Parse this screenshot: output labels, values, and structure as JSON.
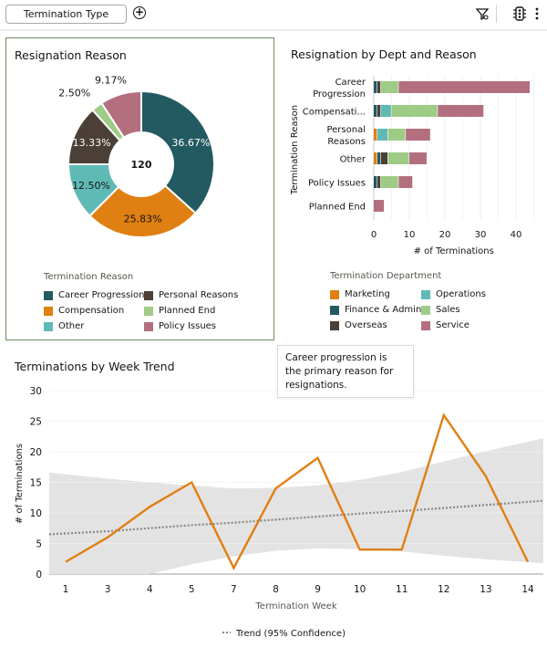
{
  "toolbar": {
    "filter_label": "Termination Type",
    "add_filter_icon": "plus-circle-icon",
    "icons": [
      "filter-icon",
      "traffic-light-icon",
      "more-vert-icon"
    ]
  },
  "tooltip": {
    "text": "Career progression is the primary reason for resignations."
  },
  "donut_panel": {
    "title": "Resignation Reason",
    "center_label": "120",
    "legend_title": "Termination Reason"
  },
  "bar_panel": {
    "title": "Resignation by Dept and Reason",
    "legend_title": "Termination Department"
  },
  "line_panel": {
    "title": "Terminations by Week Trend",
    "legend_label": "Trend (95% Confidence)"
  },
  "colors": {
    "career_progression": "#235a61",
    "compensation": "#e07f12",
    "other": "#5fbab6",
    "personal_reasons": "#4b3f37",
    "planned_end": "#9ecb86",
    "policy_issues": "#b46f7f",
    "marketing": "#e07f12",
    "finance_admin": "#235a61",
    "overseas": "#4b3f37",
    "operations": "#5fbab6",
    "sales": "#9ecb86",
    "service": "#b46f7f",
    "line": "#e07f12",
    "band": "#e3e3e3",
    "trend": "#8a8886"
  },
  "chart_data": [
    {
      "type": "pie",
      "title": "Resignation Reason",
      "total": 120,
      "slices": [
        {
          "name": "Career Progression",
          "value": 44,
          "label": "36.67%",
          "color_key": "career_progression"
        },
        {
          "name": "Compensation",
          "value": 31,
          "label": "25.83%",
          "color_key": "compensation"
        },
        {
          "name": "Other",
          "value": 15,
          "label": "12.50%",
          "color_key": "other"
        },
        {
          "name": "Personal Reasons",
          "value": 16,
          "label": "13.33%",
          "color_key": "personal_reasons"
        },
        {
          "name": "Planned End",
          "value": 3,
          "label": "2.50%",
          "color_key": "planned_end"
        },
        {
          "name": "Policy Issues",
          "value": 11,
          "label": "9.17%",
          "color_key": "policy_issues"
        }
      ],
      "legend": {
        "title": "Termination Reason",
        "entries": [
          {
            "name": "Career Progression",
            "color_key": "career_progression"
          },
          {
            "name": "Personal Reasons",
            "color_key": "personal_reasons"
          },
          {
            "name": "Compensation",
            "color_key": "compensation"
          },
          {
            "name": "Planned End",
            "color_key": "planned_end"
          },
          {
            "name": "Other",
            "color_key": "other"
          },
          {
            "name": "Policy Issues",
            "color_key": "policy_issues"
          }
        ]
      }
    },
    {
      "type": "bar",
      "orientation": "horizontal",
      "stacked": true,
      "title": "Resignation by Dept and Reason",
      "xlabel": "# of Terminations",
      "ylabel": "Termination Reason",
      "xlim": [
        0,
        45
      ],
      "xticks": [
        0,
        10,
        20,
        30,
        40
      ],
      "categories": [
        "Career Progression",
        "Compensati...",
        "Personal Reasons",
        "Other",
        "Policy Issues",
        "Planned End"
      ],
      "series": [
        {
          "name": "Marketing",
          "color_key": "marketing",
          "values": [
            0,
            0,
            1,
            1,
            0,
            0
          ]
        },
        {
          "name": "Finance & Admin",
          "color_key": "finance_admin",
          "values": [
            1,
            1,
            0,
            1,
            1,
            0
          ]
        },
        {
          "name": "Overseas",
          "color_key": "overseas",
          "values": [
            1,
            1,
            0,
            2,
            1,
            0
          ]
        },
        {
          "name": "Operations",
          "color_key": "operations",
          "values": [
            0,
            3,
            3,
            0,
            0,
            0
          ]
        },
        {
          "name": "Sales",
          "color_key": "sales",
          "values": [
            5,
            13,
            5,
            6,
            5,
            0
          ]
        },
        {
          "name": "Service",
          "color_key": "service",
          "values": [
            37,
            13,
            7,
            5,
            4,
            3
          ]
        }
      ],
      "legend": {
        "title": "Termination Department",
        "entries": [
          {
            "name": "Marketing",
            "color_key": "marketing"
          },
          {
            "name": "Operations",
            "color_key": "operations"
          },
          {
            "name": "Finance & Admin",
            "color_key": "finance_admin"
          },
          {
            "name": "Sales",
            "color_key": "sales"
          },
          {
            "name": "Overseas",
            "color_key": "overseas"
          },
          {
            "name": "Service",
            "color_key": "service"
          }
        ]
      }
    },
    {
      "type": "line",
      "title": "Terminations by Week Trend",
      "xlabel": "Termination Week",
      "ylabel": "# of Terminations",
      "ylim": [
        0,
        30
      ],
      "yticks": [
        0,
        5,
        10,
        15,
        20,
        25,
        30
      ],
      "x": [
        "1",
        "3",
        "4",
        "5",
        "7",
        "8",
        "9",
        "10",
        "11",
        "12",
        "13",
        "14"
      ],
      "series": [
        {
          "name": "Terminations",
          "values": [
            2,
            6,
            11,
            15,
            1,
            14,
            19,
            4,
            4,
            26,
            16,
            2
          ]
        }
      ],
      "trend": {
        "name": "Trend (95% Confidence)",
        "values": [
          6.5,
          7.0,
          7.5,
          8.0,
          8.4,
          8.9,
          9.4,
          9.9,
          10.3,
          10.8,
          11.3,
          12.0
        ],
        "upper": [
          16.6,
          15.6,
          15.0,
          14.5,
          14.0,
          14.1,
          14.5,
          15.4,
          16.7,
          18.4,
          20.1,
          22.2
        ],
        "lower": [
          -3.5,
          -1.6,
          0,
          1.6,
          2.9,
          3.8,
          4.2,
          4.1,
          3.7,
          3.0,
          2.4,
          1.8
        ]
      },
      "grid": true,
      "legend_position": "bottom"
    }
  ]
}
